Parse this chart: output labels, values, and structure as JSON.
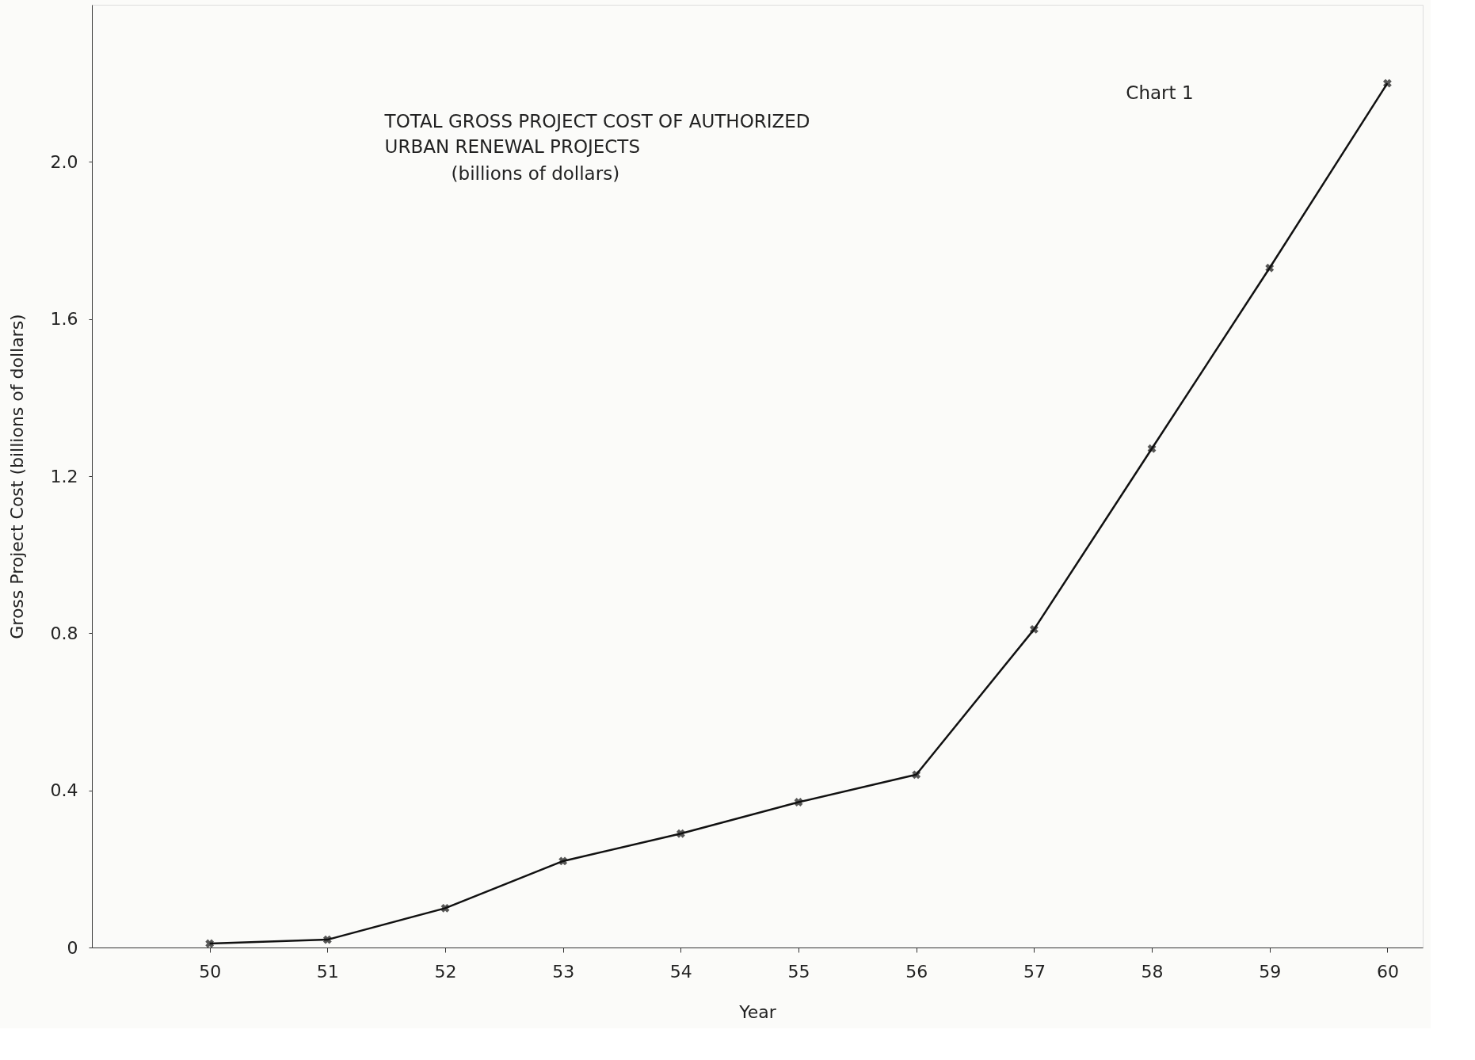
{
  "chart_data": {
    "type": "line",
    "title": "TOTAL GROSS PROJECT COST OF AUTHORIZED\nURBAN RENEWAL PROJECTS",
    "subtitle": "(billions of dollars)",
    "xlabel": "Year",
    "ylabel": "Gross Project Cost (billions of dollars)",
    "annotations": [
      "Chart 1"
    ],
    "x": [
      50,
      51,
      52,
      53,
      54,
      55,
      56,
      57,
      58,
      59,
      60
    ],
    "series": [
      {
        "color": "#111111",
        "values": [
          0.01,
          0.02,
          0.1,
          0.22,
          0.29,
          0.37,
          0.44,
          0.81,
          1.27,
          1.73,
          2.2
        ]
      }
    ],
    "xlim": [
      49,
      60.3
    ],
    "xticks": [
      50,
      51,
      52,
      53,
      54,
      55,
      56,
      57,
      58,
      59,
      60
    ],
    "ylim": [
      0,
      2.4
    ],
    "yticks": [
      0,
      0.4,
      0.8,
      1.2,
      1.6,
      {
        "value": 2,
        "label": "2.0"
      }
    ],
    "grid": false,
    "marker": "cross",
    "line_style": "solid"
  }
}
